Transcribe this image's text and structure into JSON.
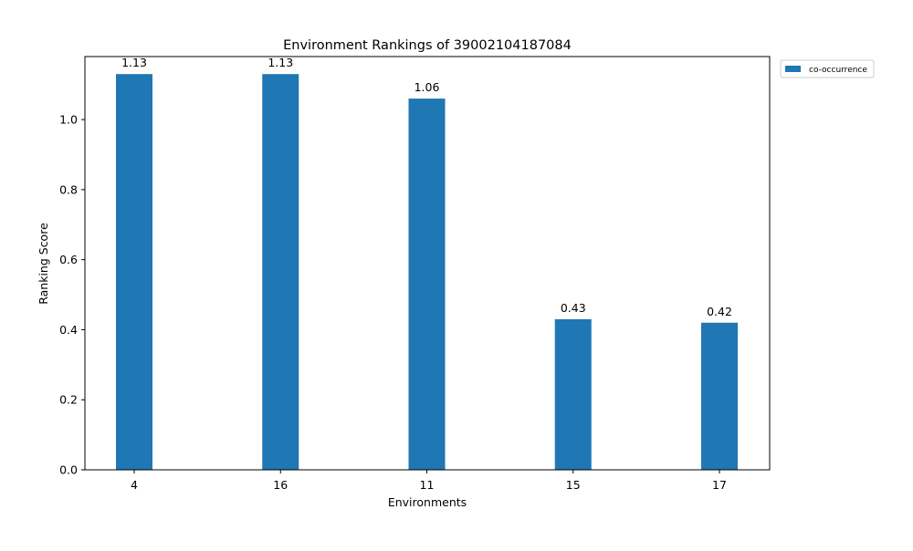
{
  "chart_data": {
    "type": "bar",
    "title": "Environment Rankings of 39002104187084",
    "xlabel": "Environments",
    "ylabel": "Ranking Score",
    "categories": [
      "4",
      "16",
      "11",
      "15",
      "17"
    ],
    "series": [
      {
        "name": "co-occurrence",
        "values": [
          1.13,
          1.13,
          1.06,
          0.43,
          0.42
        ],
        "value_labels": [
          "1.13",
          "1.13",
          "1.06",
          "0.43",
          "0.42"
        ],
        "color": "#1f77b4"
      }
    ],
    "ylim": [
      0,
      1.18
    ],
    "yticks": [
      0.0,
      0.2,
      0.4,
      0.6,
      0.8,
      1.0
    ],
    "ytick_labels": [
      "0.0",
      "0.2",
      "0.4",
      "0.6",
      "0.8",
      "1.0"
    ],
    "grid": false,
    "legend_position": "outside-top-right"
  }
}
